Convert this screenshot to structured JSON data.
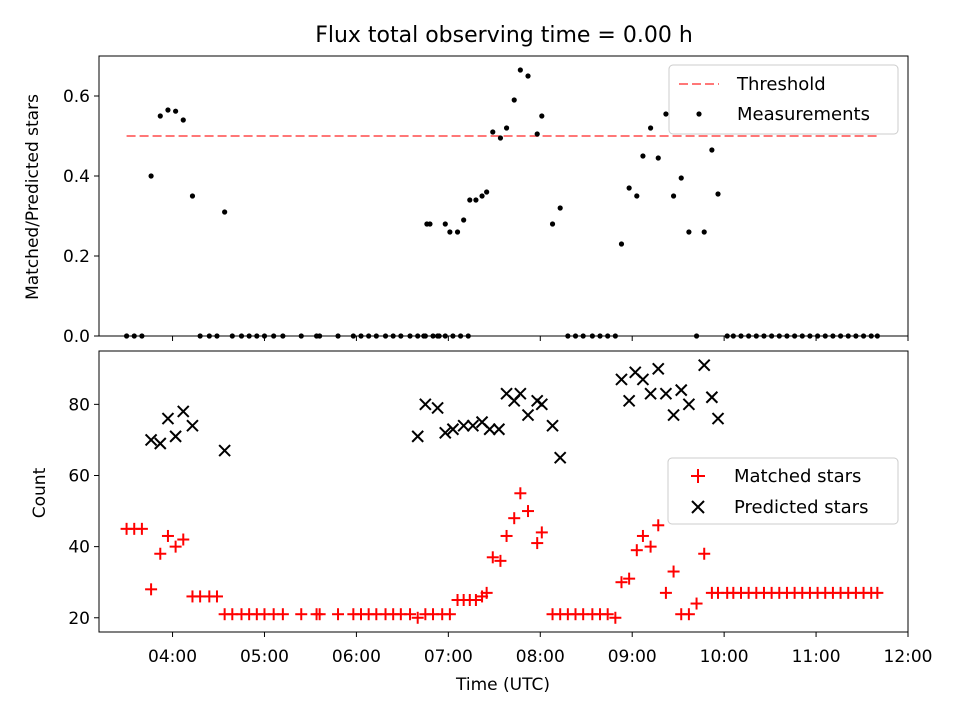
{
  "chart_data": [
    {
      "type": "scatter",
      "title": "Flux total observing time = 0.00 h",
      "xlabel": "",
      "ylabel": "Matched/Predicted stars",
      "xlim": [
        "03:12",
        "12:00"
      ],
      "ylim": [
        0,
        0.7
      ],
      "yticks": [
        "0.0",
        "0.2",
        "0.4",
        "0.6"
      ],
      "legend": {
        "position": "top-right",
        "entries": [
          "Threshold",
          "Measurements"
        ]
      },
      "threshold": {
        "name": "Threshold",
        "y": 0.5,
        "x": [
          "03:30",
          "11:40"
        ],
        "color": "#ff7777"
      },
      "series": [
        {
          "name": "Measurements",
          "color": "#000000",
          "points": [
            [
              "03:30",
              0
            ],
            [
              "03:35",
              0
            ],
            [
              "03:40",
              0
            ],
            [
              "03:46",
              0.4
            ],
            [
              "03:52",
              0.55
            ],
            [
              "03:57",
              0.565
            ],
            [
              "04:02",
              0.562
            ],
            [
              "04:07",
              0.54
            ],
            [
              "04:13",
              0.35
            ],
            [
              "04:18",
              0
            ],
            [
              "04:24",
              0
            ],
            [
              "04:29",
              0
            ],
            [
              "04:34",
              0.31
            ],
            [
              "04:39",
              0
            ],
            [
              "04:45",
              0
            ],
            [
              "04:50",
              0
            ],
            [
              "04:55",
              0
            ],
            [
              "05:00",
              0
            ],
            [
              "05:06",
              0
            ],
            [
              "05:12",
              0
            ],
            [
              "05:24",
              0
            ],
            [
              "05:34",
              0
            ],
            [
              "05:36",
              0
            ],
            [
              "05:48",
              0
            ],
            [
              "05:58",
              0
            ],
            [
              "06:03",
              0
            ],
            [
              "06:08",
              0
            ],
            [
              "06:13",
              0
            ],
            [
              "06:19",
              0
            ],
            [
              "06:24",
              0
            ],
            [
              "06:29",
              0
            ],
            [
              "06:35",
              0
            ],
            [
              "06:40",
              0
            ],
            [
              "06:45",
              0
            ],
            [
              "06:50",
              0
            ],
            [
              "06:58",
              0
            ],
            [
              "07:03",
              0
            ],
            [
              "07:08",
              0
            ],
            [
              "07:13",
              0
            ],
            [
              "06:58",
              0.28
            ],
            [
              "06:53",
              0
            ],
            [
              "06:46",
              0.28
            ],
            [
              "06:48",
              0.28
            ],
            [
              "06:44",
              0
            ],
            [
              "06:54",
              0
            ],
            [
              "07:01",
              0.26
            ],
            [
              "07:06",
              0.26
            ],
            [
              "07:10",
              0.29
            ],
            [
              "07:14",
              0.34
            ],
            [
              "07:18",
              0.34
            ],
            [
              "07:22",
              0.35
            ],
            [
              "07:25",
              0.36
            ],
            [
              "07:29",
              0.51
            ],
            [
              "07:34",
              0.495
            ],
            [
              "07:38",
              0.52
            ],
            [
              "07:43",
              0.59
            ],
            [
              "07:47",
              0.665
            ],
            [
              "07:52",
              0.65
            ],
            [
              "07:58",
              0.505
            ],
            [
              "08:01",
              0.55
            ],
            [
              "08:08",
              0.28
            ],
            [
              "08:13",
              0.32
            ],
            [
              "08:18",
              0
            ],
            [
              "08:23",
              0
            ],
            [
              "08:28",
              0
            ],
            [
              "08:34",
              0
            ],
            [
              "08:39",
              0
            ],
            [
              "08:44",
              0
            ],
            [
              "08:49",
              0
            ],
            [
              "08:53",
              0.23
            ],
            [
              "08:58",
              0.37
            ],
            [
              "09:03",
              0.35
            ],
            [
              "09:07",
              0.45
            ],
            [
              "09:12",
              0.52
            ],
            [
              "09:17",
              0.445
            ],
            [
              "09:22",
              0.555
            ],
            [
              "09:27",
              0.35
            ],
            [
              "09:32",
              0.395
            ],
            [
              "09:37",
              0.26
            ],
            [
              "09:42",
              0
            ],
            [
              "09:47",
              0.26
            ],
            [
              "09:52",
              0.465
            ],
            [
              "09:56",
              0.355
            ],
            [
              "10:02",
              0
            ],
            [
              "10:06",
              0
            ],
            [
              "10:11",
              0
            ],
            [
              "10:16",
              0
            ],
            [
              "10:21",
              0
            ],
            [
              "10:26",
              0
            ],
            [
              "10:31",
              0
            ],
            [
              "10:36",
              0
            ],
            [
              "10:41",
              0
            ],
            [
              "10:46",
              0
            ],
            [
              "10:51",
              0
            ],
            [
              "10:56",
              0
            ],
            [
              "11:01",
              0
            ],
            [
              "11:06",
              0
            ],
            [
              "11:11",
              0
            ],
            [
              "11:16",
              0
            ],
            [
              "11:21",
              0
            ],
            [
              "11:26",
              0
            ],
            [
              "11:31",
              0
            ],
            [
              "11:36",
              0
            ],
            [
              "11:40",
              0
            ]
          ]
        }
      ]
    },
    {
      "type": "scatter",
      "title": "",
      "xlabel": "Time (UTC)",
      "ylabel": "Count",
      "xlim": [
        "03:12",
        "12:00"
      ],
      "ylim": [
        16,
        95
      ],
      "xticks": [
        "04:00",
        "05:00",
        "06:00",
        "07:00",
        "08:00",
        "09:00",
        "10:00",
        "11:00",
        "12:00"
      ],
      "yticks": [
        "20",
        "40",
        "60",
        "80"
      ],
      "legend": {
        "position": "center-right",
        "entries": [
          "Matched stars",
          "Predicted stars"
        ]
      },
      "series": [
        {
          "name": "Matched stars",
          "marker": "plus",
          "color": "#ff0000",
          "points": [
            [
              "03:30",
              45
            ],
            [
              "03:35",
              45
            ],
            [
              "03:40",
              45
            ],
            [
              "03:46",
              28
            ],
            [
              "03:52",
              38
            ],
            [
              "03:57",
              43
            ],
            [
              "04:02",
              40
            ],
            [
              "04:07",
              42
            ],
            [
              "04:13",
              26
            ],
            [
              "04:18",
              26
            ],
            [
              "04:24",
              26
            ],
            [
              "04:29",
              26
            ],
            [
              "04:34",
              21
            ],
            [
              "04:39",
              21
            ],
            [
              "04:45",
              21
            ],
            [
              "04:50",
              21
            ],
            [
              "04:55",
              21
            ],
            [
              "05:00",
              21
            ],
            [
              "05:06",
              21
            ],
            [
              "05:12",
              21
            ],
            [
              "05:24",
              21
            ],
            [
              "05:34",
              21
            ],
            [
              "05:36",
              21
            ],
            [
              "05:48",
              21
            ],
            [
              "05:58",
              21
            ],
            [
              "06:03",
              21
            ],
            [
              "06:08",
              21
            ],
            [
              "06:13",
              21
            ],
            [
              "06:19",
              21
            ],
            [
              "06:24",
              21
            ],
            [
              "06:29",
              21
            ],
            [
              "06:35",
              21
            ],
            [
              "06:40",
              20
            ],
            [
              "06:45",
              21
            ],
            [
              "06:50",
              21
            ],
            [
              "06:56",
              21
            ],
            [
              "07:01",
              21
            ],
            [
              "07:06",
              25
            ],
            [
              "07:10",
              25
            ],
            [
              "07:14",
              25
            ],
            [
              "07:18",
              25
            ],
            [
              "07:22",
              26
            ],
            [
              "07:25",
              27
            ],
            [
              "07:29",
              37
            ],
            [
              "07:34",
              36
            ],
            [
              "07:38",
              43
            ],
            [
              "07:43",
              48
            ],
            [
              "07:47",
              55
            ],
            [
              "07:52",
              50
            ],
            [
              "07:58",
              41
            ],
            [
              "08:01",
              44
            ],
            [
              "08:08",
              21
            ],
            [
              "08:13",
              21
            ],
            [
              "08:18",
              21
            ],
            [
              "08:23",
              21
            ],
            [
              "08:28",
              21
            ],
            [
              "08:34",
              21
            ],
            [
              "08:39",
              21
            ],
            [
              "08:44",
              21
            ],
            [
              "08:49",
              20
            ],
            [
              "08:53",
              30
            ],
            [
              "08:58",
              31
            ],
            [
              "09:03",
              39
            ],
            [
              "09:07",
              43
            ],
            [
              "09:12",
              40
            ],
            [
              "09:17",
              46
            ],
            [
              "09:22",
              27
            ],
            [
              "09:27",
              33
            ],
            [
              "09:32",
              21
            ],
            [
              "09:37",
              21
            ],
            [
              "09:42",
              24
            ],
            [
              "09:47",
              38
            ],
            [
              "09:52",
              27
            ],
            [
              "09:56",
              27
            ],
            [
              "10:02",
              27
            ],
            [
              "10:06",
              27
            ],
            [
              "10:11",
              27
            ],
            [
              "10:16",
              27
            ],
            [
              "10:21",
              27
            ],
            [
              "10:26",
              27
            ],
            [
              "10:31",
              27
            ],
            [
              "10:36",
              27
            ],
            [
              "10:41",
              27
            ],
            [
              "10:46",
              27
            ],
            [
              "10:51",
              27
            ],
            [
              "10:56",
              27
            ],
            [
              "11:01",
              27
            ],
            [
              "11:06",
              27
            ],
            [
              "11:11",
              27
            ],
            [
              "11:16",
              27
            ],
            [
              "11:21",
              27
            ],
            [
              "11:26",
              27
            ],
            [
              "11:31",
              27
            ],
            [
              "11:36",
              27
            ],
            [
              "11:40",
              27
            ]
          ]
        },
        {
          "name": "Predicted stars",
          "marker": "x",
          "color": "#000000",
          "points": [
            [
              "03:46",
              70
            ],
            [
              "03:52",
              69
            ],
            [
              "03:57",
              76
            ],
            [
              "04:02",
              71
            ],
            [
              "04:07",
              78
            ],
            [
              "04:13",
              74
            ],
            [
              "04:34",
              67
            ],
            [
              "06:40",
              71
            ],
            [
              "06:45",
              80
            ],
            [
              "06:53",
              79
            ],
            [
              "06:58",
              72
            ],
            [
              "07:03",
              73
            ],
            [
              "07:10",
              74
            ],
            [
              "07:16",
              74
            ],
            [
              "07:22",
              75
            ],
            [
              "07:27",
              73
            ],
            [
              "07:33",
              73
            ],
            [
              "07:38",
              83
            ],
            [
              "07:43",
              81
            ],
            [
              "07:47",
              83
            ],
            [
              "07:52",
              77
            ],
            [
              "07:58",
              81
            ],
            [
              "08:01",
              80
            ],
            [
              "08:08",
              74
            ],
            [
              "08:13",
              65
            ],
            [
              "08:53",
              87
            ],
            [
              "08:58",
              81
            ],
            [
              "09:02",
              89
            ],
            [
              "09:07",
              87
            ],
            [
              "09:12",
              83
            ],
            [
              "09:17",
              90
            ],
            [
              "09:22",
              83
            ],
            [
              "09:27",
              77
            ],
            [
              "09:32",
              84
            ],
            [
              "09:37",
              80
            ],
            [
              "09:47",
              91
            ],
            [
              "09:52",
              82
            ],
            [
              "09:56",
              76
            ]
          ]
        }
      ]
    }
  ]
}
